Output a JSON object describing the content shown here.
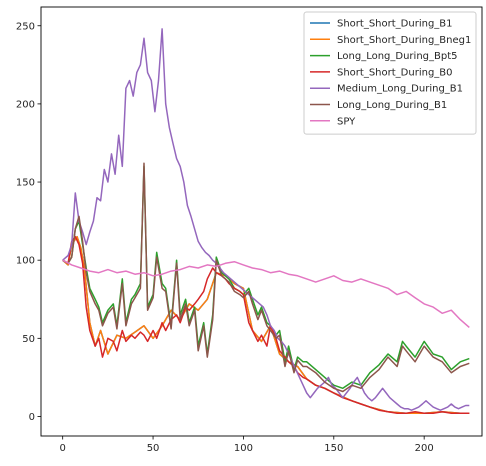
{
  "chart_data": {
    "type": "line",
    "title": "",
    "xlabel": "",
    "ylabel": "",
    "xlim": [
      -12,
      232
    ],
    "ylim": [
      -12.5,
      262
    ],
    "xticks": [
      0,
      50,
      100,
      150,
      200
    ],
    "yticks": [
      0,
      50,
      100,
      150,
      200,
      250
    ],
    "grid": false,
    "legend_position": "top-right",
    "series": [
      {
        "name": "Short_Short_During_B1",
        "color": "#1f77b4",
        "x": [
          0,
          3,
          5,
          8,
          10,
          12,
          15,
          18,
          21,
          25,
          30,
          35,
          40,
          45,
          50,
          55,
          60,
          65,
          70,
          75,
          80,
          85,
          90,
          95,
          100,
          105,
          110,
          115,
          120,
          125,
          130,
          135,
          140,
          145,
          150,
          160,
          170,
          180,
          190,
          200,
          210,
          220,
          225
        ],
        "y": [
          100,
          97,
          110,
          115,
          108,
          95,
          60,
          45,
          55,
          40,
          52,
          50,
          54,
          58,
          50,
          58,
          68,
          62,
          72,
          68,
          75,
          92,
          90,
          85,
          82,
          55,
          48,
          58,
          40,
          35,
          32,
          24,
          20,
          18,
          15,
          10,
          6,
          3,
          2,
          2,
          3,
          2,
          2
        ]
      },
      {
        "name": "Short_Short_During_Bneg1",
        "color": "#ff7f0e",
        "x": [
          0,
          3,
          5,
          8,
          10,
          12,
          15,
          18,
          21,
          25,
          30,
          35,
          40,
          45,
          50,
          55,
          60,
          65,
          70,
          75,
          80,
          85,
          90,
          95,
          100,
          105,
          110,
          115,
          120,
          125,
          130,
          135,
          140,
          145,
          150,
          160,
          170,
          180,
          190,
          200,
          210,
          220,
          225
        ],
        "y": [
          100,
          97,
          110,
          115,
          108,
          95,
          60,
          45,
          55,
          40,
          52,
          50,
          54,
          58,
          50,
          58,
          68,
          62,
          72,
          68,
          75,
          92,
          90,
          85,
          82,
          55,
          48,
          58,
          40,
          35,
          32,
          24,
          20,
          18,
          15,
          10,
          6,
          3,
          2,
          2,
          3,
          2,
          2
        ]
      },
      {
        "name": "Long_Long_During_Bpt5",
        "color": "#2ca02c",
        "x": [
          0,
          3,
          5,
          7,
          9,
          11,
          13,
          15,
          18,
          20,
          22,
          25,
          28,
          30,
          33,
          35,
          38,
          40,
          43,
          45,
          47,
          50,
          52,
          55,
          57,
          60,
          63,
          65,
          68,
          70,
          73,
          75,
          78,
          80,
          83,
          85,
          88,
          90,
          92,
          95,
          98,
          100,
          103,
          105,
          108,
          110,
          113,
          115,
          118,
          120,
          123,
          125,
          128,
          130,
          133,
          135,
          140,
          145,
          150,
          155,
          160,
          165,
          170,
          175,
          180,
          185,
          188,
          190,
          195,
          200,
          205,
          210,
          215,
          220,
          225
        ],
        "y": [
          100,
          98,
          102,
          120,
          125,
          110,
          95,
          82,
          75,
          70,
          60,
          68,
          72,
          58,
          88,
          60,
          75,
          78,
          85,
          160,
          70,
          78,
          105,
          85,
          82,
          58,
          100,
          65,
          75,
          60,
          70,
          45,
          60,
          40,
          65,
          102,
          92,
          90,
          88,
          82,
          80,
          78,
          82,
          75,
          65,
          70,
          60,
          58,
          52,
          55,
          35,
          45,
          30,
          38,
          35,
          35,
          30,
          25,
          20,
          18,
          22,
          20,
          28,
          33,
          40,
          35,
          48,
          45,
          38,
          48,
          40,
          38,
          30,
          35,
          37
        ]
      },
      {
        "name": "Short_Short_During_B0",
        "color": "#d62728",
        "x": [
          0,
          3,
          5,
          7,
          9,
          11,
          13,
          15,
          18,
          20,
          22,
          25,
          28,
          30,
          33,
          35,
          38,
          40,
          43,
          45,
          47,
          50,
          52,
          55,
          57,
          60,
          63,
          65,
          68,
          70,
          73,
          75,
          78,
          80,
          83,
          85,
          88,
          90,
          92,
          95,
          98,
          100,
          103,
          105,
          108,
          110,
          113,
          115,
          118,
          120,
          123,
          125,
          128,
          130,
          133,
          135,
          140,
          145,
          150,
          155,
          160,
          165,
          170,
          175,
          180,
          185,
          190,
          195,
          200,
          205,
          210,
          215,
          220,
          225
        ],
        "y": [
          100,
          98,
          112,
          115,
          110,
          98,
          70,
          55,
          45,
          50,
          38,
          50,
          48,
          42,
          55,
          48,
          52,
          50,
          54,
          52,
          48,
          55,
          50,
          60,
          55,
          62,
          65,
          60,
          70,
          68,
          72,
          75,
          80,
          88,
          95,
          92,
          90,
          88,
          85,
          82,
          80,
          78,
          60,
          55,
          48,
          52,
          45,
          58,
          50,
          42,
          38,
          35,
          32,
          28,
          25,
          24,
          20,
          18,
          15,
          12,
          10,
          8,
          6,
          4,
          3,
          2,
          2,
          3,
          2,
          2,
          3,
          2,
          2,
          2
        ]
      },
      {
        "name": "Medium_Long_During_B1",
        "color": "#9467bd",
        "x": [
          0,
          3,
          5,
          7,
          9,
          11,
          13,
          15,
          17,
          19,
          21,
          23,
          25,
          27,
          29,
          31,
          33,
          35,
          37,
          39,
          41,
          43,
          45,
          47,
          49,
          51,
          53,
          55,
          57,
          59,
          61,
          63,
          65,
          67,
          69,
          71,
          73,
          75,
          77,
          79,
          81,
          83,
          85,
          87,
          89,
          91,
          93,
          95,
          97,
          99,
          101,
          103,
          105,
          107,
          109,
          111,
          113,
          115,
          117,
          119,
          121,
          123,
          125,
          127,
          129,
          131,
          133,
          135,
          137,
          139,
          141,
          143,
          145,
          147,
          149,
          151,
          153,
          155,
          157,
          159,
          161,
          163,
          165,
          167,
          169,
          171,
          173,
          175,
          177,
          179,
          181,
          183,
          185,
          187,
          189,
          191,
          193,
          195,
          197,
          199,
          201,
          203,
          205,
          207,
          209,
          211,
          213,
          215,
          217,
          219,
          221,
          223,
          225
        ],
        "y": [
          100,
          103,
          110,
          143,
          125,
          118,
          110,
          118,
          125,
          140,
          138,
          158,
          150,
          168,
          155,
          180,
          160,
          210,
          215,
          205,
          220,
          225,
          242,
          220,
          215,
          195,
          215,
          248,
          200,
          185,
          175,
          165,
          160,
          150,
          135,
          128,
          120,
          112,
          108,
          105,
          103,
          100,
          98,
          95,
          92,
          90,
          88,
          86,
          84,
          82,
          80,
          78,
          76,
          74,
          72,
          70,
          65,
          58,
          55,
          50,
          48,
          45,
          40,
          35,
          30,
          25,
          20,
          15,
          12,
          15,
          18,
          20,
          22,
          25,
          20,
          18,
          15,
          12,
          15,
          18,
          22,
          25,
          20,
          15,
          12,
          10,
          12,
          15,
          18,
          15,
          12,
          10,
          8,
          6,
          5,
          5,
          4,
          5,
          6,
          8,
          10,
          8,
          6,
          5,
          4,
          5,
          6,
          8,
          6,
          5,
          6,
          7,
          7
        ]
      },
      {
        "name": "Long_Long_During_B1",
        "color": "#8c564b",
        "x": [
          0,
          3,
          5,
          7,
          9,
          11,
          13,
          15,
          18,
          20,
          22,
          25,
          28,
          30,
          33,
          35,
          38,
          40,
          43,
          45,
          47,
          50,
          52,
          55,
          57,
          60,
          63,
          65,
          68,
          70,
          73,
          75,
          78,
          80,
          83,
          85,
          88,
          90,
          92,
          95,
          98,
          100,
          103,
          105,
          108,
          110,
          113,
          115,
          118,
          120,
          123,
          125,
          128,
          130,
          133,
          135,
          140,
          145,
          150,
          155,
          160,
          165,
          170,
          175,
          180,
          185,
          188,
          190,
          195,
          200,
          205,
          210,
          215,
          220,
          225
        ],
        "y": [
          100,
          98,
          102,
          120,
          128,
          112,
          92,
          80,
          72,
          68,
          58,
          66,
          70,
          56,
          85,
          58,
          72,
          76,
          82,
          162,
          68,
          76,
          102,
          82,
          80,
          56,
          98,
          62,
          72,
          58,
          68,
          42,
          58,
          38,
          62,
          100,
          90,
          88,
          86,
          80,
          78,
          76,
          80,
          72,
          62,
          68,
          58,
          55,
          50,
          52,
          32,
          42,
          28,
          36,
          32,
          32,
          28,
          22,
          18,
          16,
          20,
          18,
          25,
          30,
          38,
          32,
          45,
          42,
          35,
          45,
          38,
          35,
          28,
          32,
          34
        ]
      },
      {
        "name": "SPY",
        "color": "#e377c2",
        "x": [
          0,
          5,
          10,
          15,
          20,
          25,
          30,
          35,
          40,
          45,
          50,
          55,
          60,
          65,
          70,
          75,
          80,
          85,
          90,
          95,
          100,
          105,
          110,
          115,
          120,
          125,
          130,
          135,
          140,
          145,
          150,
          155,
          160,
          165,
          170,
          175,
          180,
          185,
          190,
          195,
          200,
          205,
          210,
          215,
          220,
          225
        ],
        "y": [
          100,
          97,
          95,
          93,
          92,
          94,
          92,
          93,
          91,
          92,
          90,
          91,
          93,
          94,
          96,
          95,
          97,
          96,
          98,
          99,
          97,
          95,
          94,
          92,
          93,
          91,
          90,
          88,
          86,
          88,
          90,
          87,
          86,
          88,
          86,
          84,
          82,
          78,
          80,
          76,
          72,
          70,
          66,
          68,
          62,
          57
        ]
      }
    ]
  }
}
